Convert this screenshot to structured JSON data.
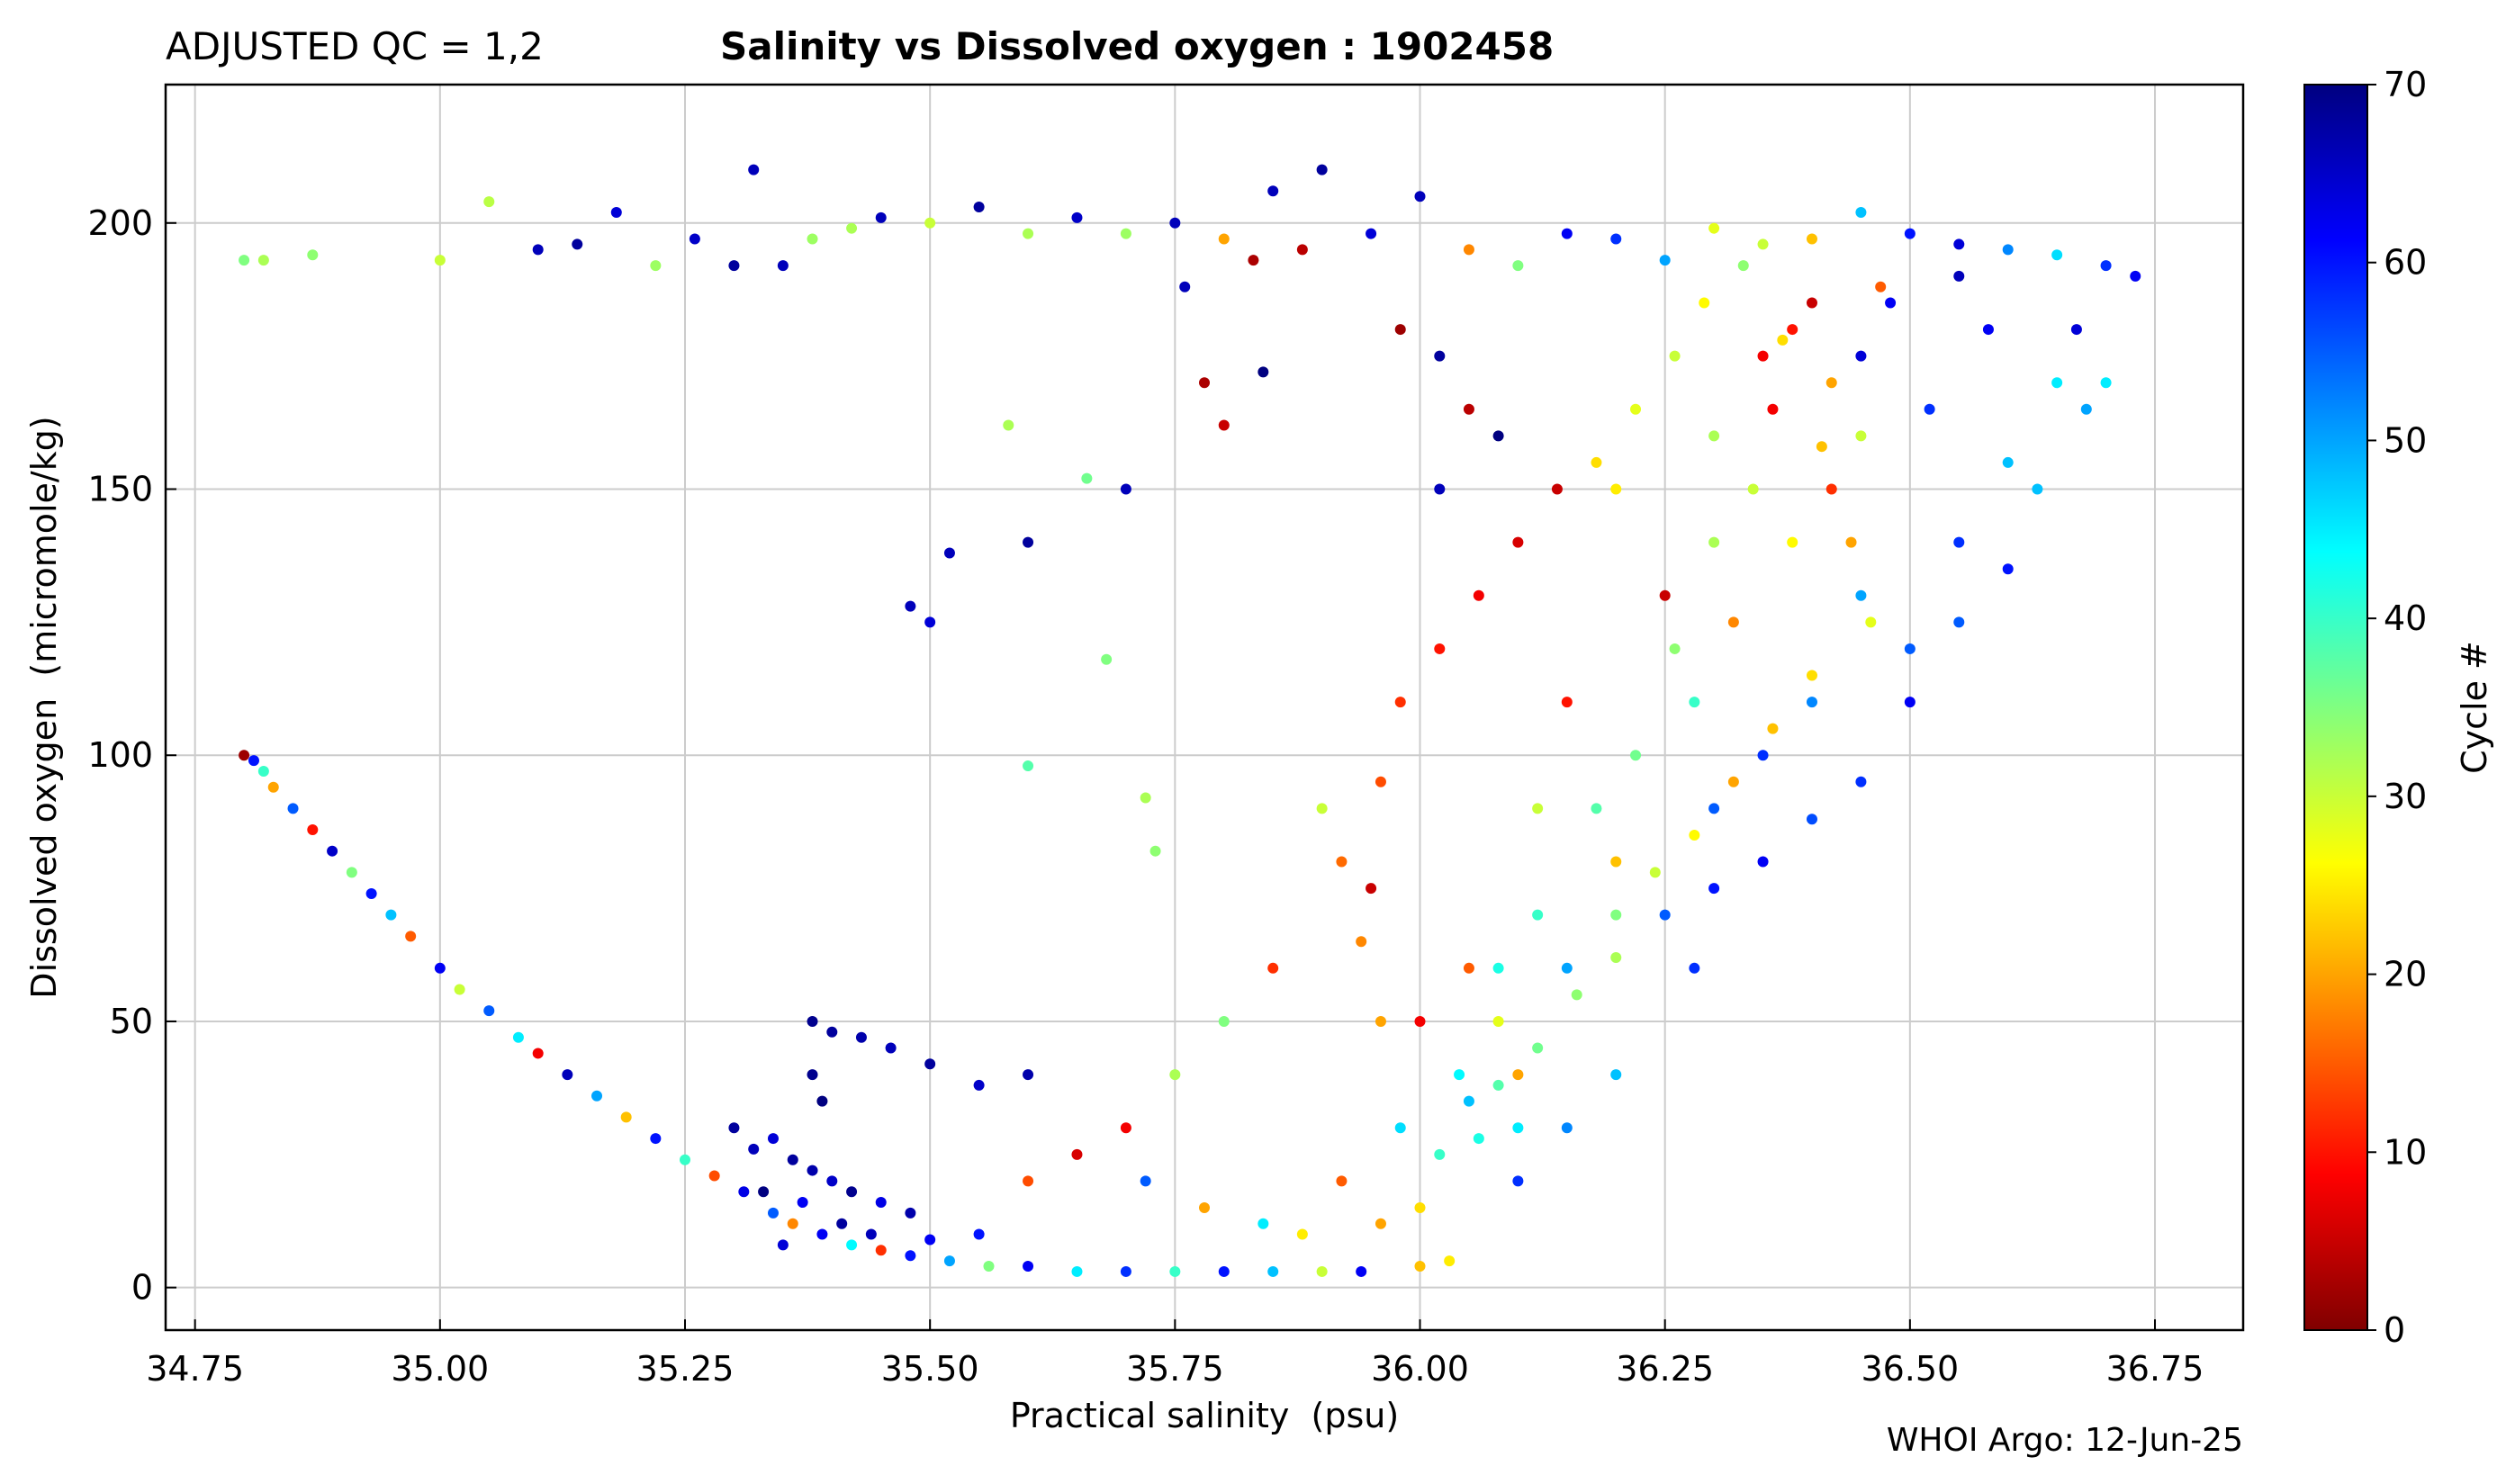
{
  "header": {
    "qc_label": "ADJUSTED QC = 1,2",
    "title": "Salinity vs Dissolved oxygen : 1902458"
  },
  "footer": {
    "credit": "WHOI Argo: 12-Jun-25"
  },
  "colorbar": {
    "label": "Cycle #",
    "colormap": "jet_reversed",
    "vmin": 0,
    "vmax": 70,
    "ticks": [
      0,
      10,
      20,
      30,
      40,
      50,
      60,
      70
    ],
    "tick_labels": [
      "0",
      "10",
      "20",
      "30",
      "40",
      "50",
      "60",
      "70"
    ]
  },
  "chart_data": {
    "type": "scatter",
    "title": "Salinity vs Dissolved oxygen : 1902458",
    "xlabel": "Practical salinity  (psu)",
    "ylabel": "Dissolved oxygen  (micromole/kg)",
    "xlim": [
      34.72,
      36.84
    ],
    "ylim": [
      -8,
      226
    ],
    "xticks": [
      34.75,
      35.0,
      35.25,
      35.5,
      35.75,
      36.0,
      36.25,
      36.5,
      36.75
    ],
    "xtick_labels": [
      "34.75",
      "35.00",
      "35.25",
      "35.50",
      "35.75",
      "36.00",
      "36.25",
      "36.50",
      "36.75"
    ],
    "yticks": [
      0,
      50,
      100,
      150,
      200
    ],
    "ytick_labels": [
      "0",
      "50",
      "100",
      "150",
      "200"
    ],
    "grid": true,
    "color_by": "cycle",
    "points_encoding": "[salinity, oxygen, cycle]",
    "points": [
      [
        34.8,
        100,
        2
      ],
      [
        34.81,
        99,
        60
      ],
      [
        34.82,
        97,
        40
      ],
      [
        34.83,
        94,
        20
      ],
      [
        34.85,
        90,
        55
      ],
      [
        34.87,
        86,
        10
      ],
      [
        34.89,
        82,
        65
      ],
      [
        34.91,
        78,
        35
      ],
      [
        34.93,
        74,
        60
      ],
      [
        34.95,
        70,
        48
      ],
      [
        34.97,
        66,
        15
      ],
      [
        35.0,
        60,
        62
      ],
      [
        35.02,
        56,
        30
      ],
      [
        35.05,
        52,
        55
      ],
      [
        35.08,
        47,
        45
      ],
      [
        35.1,
        44,
        8
      ],
      [
        35.13,
        40,
        66
      ],
      [
        35.16,
        36,
        50
      ],
      [
        35.19,
        32,
        22
      ],
      [
        35.22,
        28,
        60
      ],
      [
        35.25,
        24,
        40
      ],
      [
        35.28,
        21,
        14
      ],
      [
        35.31,
        18,
        63
      ],
      [
        35.34,
        14,
        55
      ],
      [
        35.36,
        12,
        18
      ],
      [
        35.39,
        10,
        62
      ],
      [
        35.42,
        8,
        44
      ],
      [
        35.45,
        7,
        12
      ],
      [
        35.48,
        6,
        60
      ],
      [
        35.52,
        5,
        50
      ],
      [
        35.56,
        4,
        35
      ],
      [
        35.6,
        4,
        62
      ],
      [
        35.65,
        3,
        45
      ],
      [
        35.7,
        3,
        58
      ],
      [
        35.75,
        3,
        40
      ],
      [
        35.8,
        3,
        60
      ],
      [
        35.85,
        3,
        48
      ],
      [
        35.9,
        3,
        30
      ],
      [
        35.94,
        3,
        62
      ],
      [
        36.0,
        4,
        22
      ],
      [
        36.03,
        5,
        25
      ],
      [
        35.3,
        30,
        68
      ],
      [
        35.32,
        26,
        66
      ],
      [
        35.34,
        28,
        64
      ],
      [
        35.36,
        24,
        68
      ],
      [
        35.38,
        22,
        67
      ],
      [
        35.4,
        20,
        65
      ],
      [
        35.42,
        18,
        69
      ],
      [
        35.45,
        16,
        63
      ],
      [
        35.48,
        14,
        67
      ],
      [
        35.33,
        18,
        70
      ],
      [
        35.37,
        16,
        62
      ],
      [
        35.41,
        12,
        68
      ],
      [
        35.44,
        10,
        66
      ],
      [
        35.35,
        8,
        64
      ],
      [
        35.5,
        9,
        62
      ],
      [
        35.55,
        10,
        60
      ],
      [
        35.38,
        50,
        69
      ],
      [
        35.4,
        48,
        68
      ],
      [
        35.43,
        47,
        67
      ],
      [
        35.46,
        45,
        66
      ],
      [
        35.5,
        42,
        68
      ],
      [
        35.55,
        38,
        65
      ],
      [
        35.6,
        40,
        67
      ],
      [
        35.38,
        40,
        69
      ],
      [
        35.39,
        35,
        70
      ],
      [
        35.48,
        128,
        66
      ],
      [
        35.5,
        125,
        64
      ],
      [
        35.52,
        138,
        66
      ],
      [
        35.58,
        162,
        32
      ],
      [
        35.6,
        140,
        68
      ],
      [
        35.68,
        118,
        35
      ],
      [
        35.72,
        92,
        32
      ],
      [
        35.6,
        98,
        38
      ],
      [
        35.73,
        82,
        34
      ],
      [
        35.66,
        152,
        36
      ],
      [
        35.7,
        150,
        66
      ],
      [
        34.8,
        193,
        35
      ],
      [
        34.82,
        193,
        32
      ],
      [
        34.87,
        194,
        34
      ],
      [
        35.0,
        193,
        30
      ],
      [
        35.05,
        204,
        31
      ],
      [
        35.1,
        195,
        66
      ],
      [
        35.14,
        196,
        68
      ],
      [
        35.18,
        202,
        64
      ],
      [
        35.22,
        192,
        33
      ],
      [
        35.26,
        197,
        65
      ],
      [
        35.3,
        192,
        68
      ],
      [
        35.32,
        210,
        66
      ],
      [
        35.35,
        192,
        66
      ],
      [
        35.38,
        197,
        33
      ],
      [
        35.42,
        199,
        32
      ],
      [
        35.45,
        201,
        66
      ],
      [
        35.5,
        200,
        30
      ],
      [
        35.55,
        203,
        68
      ],
      [
        35.6,
        198,
        32
      ],
      [
        35.65,
        201,
        65
      ],
      [
        35.7,
        198,
        33
      ],
      [
        35.75,
        200,
        66
      ],
      [
        35.8,
        197,
        20
      ],
      [
        35.85,
        206,
        66
      ],
      [
        35.88,
        195,
        4
      ],
      [
        35.9,
        210,
        68
      ],
      [
        35.95,
        198,
        64
      ],
      [
        36.0,
        205,
        66
      ],
      [
        36.05,
        195,
        18
      ],
      [
        36.1,
        192,
        35
      ],
      [
        36.15,
        198,
        62
      ],
      [
        36.2,
        197,
        58
      ],
      [
        36.25,
        193,
        50
      ],
      [
        36.3,
        199,
        28
      ],
      [
        36.35,
        196,
        30
      ],
      [
        36.4,
        197,
        22
      ],
      [
        36.45,
        202,
        48
      ],
      [
        36.5,
        198,
        60
      ],
      [
        36.55,
        196,
        64
      ],
      [
        36.6,
        195,
        52
      ],
      [
        36.65,
        194,
        46
      ],
      [
        36.7,
        192,
        58
      ],
      [
        36.73,
        190,
        62
      ],
      [
        35.83,
        193,
        3
      ],
      [
        35.78,
        170,
        3
      ],
      [
        35.8,
        162,
        5
      ],
      [
        35.84,
        172,
        70
      ],
      [
        35.76,
        188,
        66
      ],
      [
        36.02,
        175,
        68
      ],
      [
        36.05,
        165,
        4
      ],
      [
        36.08,
        160,
        70
      ],
      [
        36.02,
        150,
        66
      ],
      [
        35.98,
        180,
        2
      ],
      [
        36.1,
        40,
        20
      ],
      [
        36.1,
        30,
        45
      ],
      [
        36.2,
        70,
        35
      ],
      [
        36.15,
        110,
        10
      ],
      [
        36.25,
        130,
        5
      ],
      [
        36.3,
        160,
        32
      ],
      [
        36.35,
        175,
        8
      ],
      [
        36.4,
        185,
        5
      ],
      [
        36.2,
        150,
        25
      ],
      [
        36.12,
        90,
        30
      ],
      [
        36.05,
        60,
        15
      ],
      [
        36.0,
        50,
        8
      ],
      [
        35.95,
        75,
        5
      ],
      [
        35.9,
        90,
        30
      ],
      [
        35.85,
        60,
        12
      ],
      [
        35.8,
        50,
        35
      ],
      [
        35.75,
        40,
        32
      ],
      [
        35.7,
        30,
        8
      ],
      [
        35.65,
        25,
        6
      ],
      [
        35.6,
        20,
        14
      ],
      [
        35.72,
        20,
        55
      ],
      [
        35.78,
        15,
        20
      ],
      [
        35.84,
        12,
        45
      ],
      [
        35.88,
        10,
        25
      ],
      [
        35.92,
        20,
        15
      ],
      [
        36.02,
        25,
        40
      ],
      [
        36.05,
        35,
        48
      ],
      [
        36.08,
        50,
        28
      ],
      [
        36.15,
        60,
        50
      ],
      [
        36.2,
        80,
        22
      ],
      [
        36.28,
        110,
        40
      ],
      [
        36.32,
        125,
        18
      ],
      [
        36.38,
        140,
        26
      ],
      [
        36.42,
        150,
        12
      ],
      [
        36.45,
        160,
        30
      ],
      [
        36.3,
        90,
        55
      ],
      [
        36.35,
        100,
        58
      ],
      [
        36.4,
        110,
        52
      ],
      [
        36.45,
        130,
        50
      ],
      [
        36.5,
        120,
        55
      ],
      [
        36.55,
        140,
        58
      ],
      [
        36.6,
        155,
        48
      ],
      [
        36.65,
        170,
        45
      ],
      [
        36.68,
        165,
        50
      ],
      [
        36.25,
        70,
        55
      ],
      [
        36.28,
        60,
        58
      ],
      [
        36.2,
        40,
        48
      ],
      [
        36.15,
        30,
        52
      ],
      [
        36.1,
        20,
        58
      ],
      [
        36.3,
        75,
        60
      ],
      [
        36.35,
        80,
        62
      ],
      [
        36.4,
        88,
        56
      ],
      [
        36.45,
        95,
        58
      ],
      [
        36.5,
        110,
        62
      ],
      [
        36.55,
        125,
        55
      ],
      [
        36.6,
        135,
        60
      ],
      [
        36.63,
        150,
        48
      ],
      [
        36.67,
        180,
        64
      ],
      [
        36.7,
        170,
        45
      ],
      [
        36.48,
        185,
        62
      ],
      [
        36.45,
        175,
        64
      ],
      [
        36.52,
        165,
        58
      ],
      [
        36.55,
        190,
        66
      ],
      [
        36.58,
        180,
        62
      ],
      [
        36.42,
        170,
        20
      ],
      [
        36.47,
        188,
        15
      ],
      [
        36.38,
        180,
        10
      ],
      [
        36.36,
        165,
        8
      ],
      [
        36.34,
        150,
        30
      ],
      [
        36.3,
        140,
        32
      ],
      [
        36.26,
        120,
        34
      ],
      [
        36.22,
        100,
        36
      ],
      [
        36.18,
        90,
        38
      ],
      [
        36.12,
        70,
        40
      ],
      [
        36.08,
        60,
        42
      ],
      [
        36.04,
        40,
        44
      ],
      [
        35.98,
        30,
        46
      ],
      [
        35.96,
        50,
        20
      ],
      [
        35.94,
        65,
        18
      ],
      [
        35.92,
        80,
        16
      ],
      [
        35.96,
        95,
        14
      ],
      [
        35.98,
        110,
        12
      ],
      [
        36.02,
        120,
        10
      ],
      [
        36.06,
        130,
        8
      ],
      [
        36.1,
        140,
        6
      ],
      [
        36.14,
        150,
        5
      ],
      [
        36.18,
        155,
        24
      ],
      [
        36.22,
        165,
        28
      ],
      [
        36.26,
        175,
        30
      ],
      [
        36.29,
        185,
        26
      ],
      [
        36.33,
        192,
        34
      ],
      [
        36.37,
        178,
        24
      ],
      [
        36.41,
        158,
        22
      ],
      [
        36.44,
        140,
        20
      ],
      [
        36.46,
        125,
        28
      ],
      [
        36.4,
        115,
        24
      ],
      [
        36.36,
        105,
        22
      ],
      [
        36.32,
        95,
        20
      ],
      [
        36.28,
        85,
        26
      ],
      [
        36.24,
        78,
        30
      ],
      [
        36.2,
        62,
        32
      ],
      [
        36.16,
        55,
        34
      ],
      [
        36.12,
        45,
        36
      ],
      [
        36.08,
        38,
        38
      ],
      [
        36.06,
        28,
        42
      ],
      [
        36.0,
        15,
        24
      ],
      [
        35.96,
        12,
        20
      ]
    ]
  }
}
